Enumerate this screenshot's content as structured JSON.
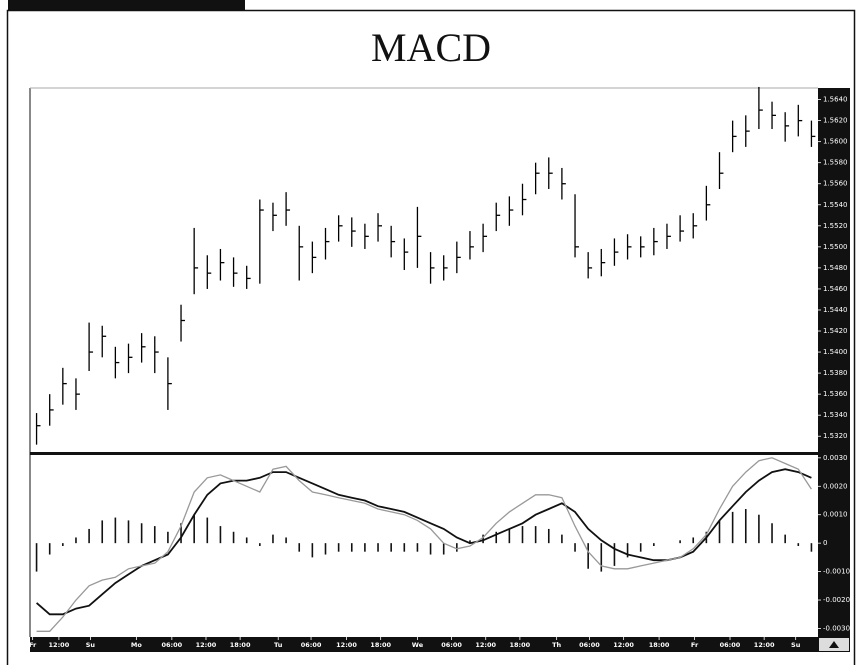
{
  "chart_data": [
    {
      "type": "ohlc",
      "title": "MACD",
      "color": "#000",
      "xlim": [
        -0.5,
        59.5
      ],
      "ylim": [
        1.5305,
        1.5651
      ],
      "yticks": [
        {
          "value": 1.532,
          "label": "1.5320"
        },
        {
          "value": 1.534,
          "label": "1.5340"
        },
        {
          "value": 1.536,
          "label": "1.5360"
        },
        {
          "value": 1.538,
          "label": "1.5380"
        },
        {
          "value": 1.54,
          "label": "1.5400"
        },
        {
          "value": 1.542,
          "label": "1.5420"
        },
        {
          "value": 1.544,
          "label": "1.5440"
        },
        {
          "value": 1.546,
          "label": "1.5460"
        },
        {
          "value": 1.548,
          "label": "1.5480"
        },
        {
          "value": 1.55,
          "label": "1.5500"
        },
        {
          "value": 1.552,
          "label": "1.5520"
        },
        {
          "value": 1.554,
          "label": "1.5540"
        },
        {
          "value": 1.556,
          "label": "1.5560"
        },
        {
          "value": 1.558,
          "label": "1.5580"
        },
        {
          "value": 1.56,
          "label": "1.5600"
        },
        {
          "value": 1.562,
          "label": "1.5620"
        },
        {
          "value": 1.564,
          "label": "1.5640"
        }
      ],
      "high": [
        1.5342,
        1.536,
        1.5385,
        1.5375,
        1.5428,
        1.5425,
        1.5405,
        1.5408,
        1.5418,
        1.5415,
        1.5395,
        1.5445,
        1.5518,
        1.5492,
        1.5498,
        1.549,
        1.5482,
        1.5545,
        1.5542,
        1.5552,
        1.552,
        1.5505,
        1.5518,
        1.553,
        1.5528,
        1.5522,
        1.5532,
        1.552,
        1.5508,
        1.5538,
        1.5495,
        1.5492,
        1.5505,
        1.5515,
        1.5522,
        1.5542,
        1.5548,
        1.556,
        1.558,
        1.5585,
        1.5575,
        1.555,
        1.5495,
        1.5498,
        1.5508,
        1.5512,
        1.551,
        1.5518,
        1.5522,
        1.553,
        1.5532,
        1.5558,
        1.559,
        1.562,
        1.5625,
        1.5652,
        1.5638,
        1.5628,
        1.5635,
        1.562
      ],
      "low": [
        1.5312,
        1.533,
        1.535,
        1.5345,
        1.5382,
        1.5395,
        1.5375,
        1.538,
        1.539,
        1.538,
        1.5345,
        1.541,
        1.5455,
        1.546,
        1.5468,
        1.5462,
        1.546,
        1.5465,
        1.5515,
        1.552,
        1.5468,
        1.5475,
        1.5488,
        1.5505,
        1.55,
        1.5498,
        1.5505,
        1.549,
        1.5478,
        1.548,
        1.5465,
        1.5468,
        1.5475,
        1.5488,
        1.5495,
        1.5515,
        1.552,
        1.553,
        1.555,
        1.5555,
        1.5545,
        1.549,
        1.547,
        1.5472,
        1.5482,
        1.5488,
        1.549,
        1.5492,
        1.5498,
        1.5505,
        1.5508,
        1.5525,
        1.5555,
        1.559,
        1.5595,
        1.5612,
        1.5612,
        1.56,
        1.5605,
        1.5595
      ],
      "close": [
        1.533,
        1.5345,
        1.537,
        1.536,
        1.54,
        1.5415,
        1.539,
        1.5395,
        1.5405,
        1.54,
        1.537,
        1.543,
        1.548,
        1.5475,
        1.5485,
        1.5475,
        1.547,
        1.5535,
        1.553,
        1.5535,
        1.55,
        1.549,
        1.5505,
        1.552,
        1.5515,
        1.551,
        1.552,
        1.5505,
        1.5495,
        1.551,
        1.548,
        1.548,
        1.549,
        1.55,
        1.551,
        1.553,
        1.5535,
        1.5545,
        1.557,
        1.557,
        1.556,
        1.55,
        1.548,
        1.5485,
        1.5495,
        1.55,
        1.55,
        1.5505,
        1.551,
        1.5515,
        1.552,
        1.554,
        1.557,
        1.5605,
        1.561,
        1.563,
        1.5625,
        1.5615,
        1.562,
        1.5605
      ]
    },
    {
      "type": "macd",
      "xlim": [
        -0.5,
        59.5
      ],
      "ylim": [
        -0.0033,
        0.0031
      ],
      "yticks": [
        {
          "value": 0.003,
          "label": "0.0030"
        },
        {
          "value": 0.002,
          "label": "0.0020"
        },
        {
          "value": 0.001,
          "label": "0.0010"
        },
        0,
        {
          "value": -0.001,
          "label": "-0.0010"
        },
        {
          "value": -0.002,
          "label": "-0.0020"
        },
        {
          "value": -0.003,
          "label": "-0.0030"
        }
      ],
      "xticks": [
        {
          "value": -0.3,
          "label": "Fr"
        },
        {
          "value": 1.7,
          "label": "12:00"
        },
        {
          "value": 4.1,
          "label": "Su"
        },
        {
          "value": 7.6,
          "label": "Mo"
        },
        {
          "value": 10.3,
          "label": "06:00"
        },
        {
          "value": 12.9,
          "label": "12:00"
        },
        {
          "value": 15.5,
          "label": "18:00"
        },
        {
          "value": 18.4,
          "label": "Tu"
        },
        {
          "value": 20.9,
          "label": "06:00"
        },
        {
          "value": 23.6,
          "label": "12:00"
        },
        {
          "value": 26.2,
          "label": "18:00"
        },
        {
          "value": 29.0,
          "label": "We"
        },
        {
          "value": 31.6,
          "label": "06:00"
        },
        {
          "value": 34.2,
          "label": "12:00"
        },
        {
          "value": 36.8,
          "label": "18:00"
        },
        {
          "value": 39.6,
          "label": "Th"
        },
        {
          "value": 42.1,
          "label": "06:00"
        },
        {
          "value": 44.7,
          "label": "12:00"
        },
        {
          "value": 47.4,
          "label": "18:00"
        },
        {
          "value": 50.1,
          "label": "Fr"
        },
        {
          "value": 52.8,
          "label": "06:00"
        },
        {
          "value": 55.4,
          "label": "12:00"
        },
        {
          "value": 57.8,
          "label": "Su"
        }
      ],
      "series": [
        {
          "color": "#111",
          "values": [
            -0.0021,
            -0.0025,
            -0.0025,
            -0.0023,
            -0.0022,
            -0.0018,
            -0.0014,
            -0.0011,
            -0.0008,
            -0.0006,
            -0.0004,
            0.0002,
            0.001,
            0.0017,
            0.0021,
            0.0022,
            0.0022,
            0.0023,
            0.0025,
            0.0025,
            0.0023,
            0.0021,
            0.0019,
            0.0017,
            0.0016,
            0.0015,
            0.0013,
            0.0012,
            0.0011,
            0.0009,
            0.0007,
            0.0005,
            0.0002,
            0.0,
            0.0001,
            0.0003,
            0.0005,
            0.0007,
            0.001,
            0.0012,
            0.0014,
            0.0011,
            0.0005,
            0.0001,
            -0.0002,
            -0.0004,
            -0.0005,
            -0.0006,
            -0.0006,
            -0.0005,
            -0.0003,
            0.0002,
            0.0008,
            0.0013,
            0.0018,
            0.0022,
            0.0025,
            0.0026,
            0.0025,
            0.0023
          ]
        },
        {
          "color": "#999",
          "values": [
            -0.0031,
            -0.0031,
            -0.0026,
            -0.002,
            -0.0015,
            -0.0013,
            -0.0012,
            -0.0009,
            -0.0008,
            -0.0007,
            -0.0003,
            0.0006,
            0.0018,
            0.0023,
            0.0024,
            0.0022,
            0.002,
            0.0018,
            0.0026,
            0.0027,
            0.0022,
            0.0018,
            0.0017,
            0.0016,
            0.0015,
            0.0014,
            0.0012,
            0.0011,
            0.001,
            0.0008,
            0.0005,
            0.0,
            -0.0002,
            -0.0001,
            0.0002,
            0.0007,
            0.0011,
            0.0014,
            0.0017,
            0.0017,
            0.0016,
            0.0006,
            -0.0003,
            -0.0008,
            -0.0009,
            -0.0009,
            -0.0008,
            -0.0007,
            -0.0006,
            -0.0005,
            -0.0002,
            0.0003,
            0.0012,
            0.002,
            0.0025,
            0.0029,
            0.003,
            0.0028,
            0.0026,
            0.0019
          ]
        }
      ],
      "histogram": {
        "color": "#111",
        "values": [
          -0.001,
          -0.0004,
          -0.0001,
          0.0002,
          0.0005,
          0.0008,
          0.0009,
          0.0008,
          0.0007,
          0.0006,
          0.0004,
          0.0007,
          0.001,
          0.0009,
          0.0006,
          0.0004,
          0.0002,
          -0.0001,
          0.0003,
          0.0002,
          -0.0003,
          -0.0005,
          -0.0004,
          -0.0003,
          -0.0003,
          -0.0003,
          -0.0003,
          -0.0003,
          -0.0003,
          -0.0003,
          -0.0004,
          -0.0004,
          -0.0003,
          0.0001,
          0.0003,
          0.0004,
          0.0005,
          0.0006,
          0.0006,
          0.0005,
          0.0003,
          -0.0003,
          -0.0009,
          -0.001,
          -0.0008,
          -0.0005,
          -0.0003,
          -0.0001,
          0.0,
          0.0001,
          0.0002,
          0.0004,
          0.0008,
          0.0011,
          0.0012,
          0.001,
          0.0007,
          0.0003,
          -0.0001,
          -0.0003
        ]
      }
    }
  ]
}
